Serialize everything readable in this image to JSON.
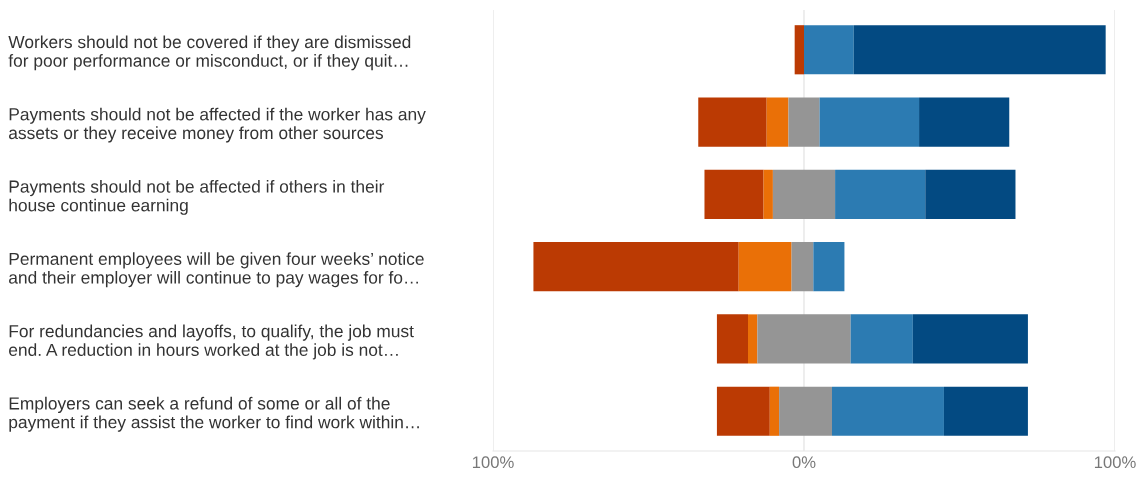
{
  "chart_data": {
    "type": "bar",
    "orientation": "horizontal",
    "categories": [
      "Workers should not be covered if they are dismissed\nfor poor performance or misconduct, or if they quit…",
      "Payments should not be affected if the worker has any\nassets or they receive money from other sources",
      "Payments should not be affected if others in their\nhouse continue earning",
      "Permanent employees will be given four weeks’ notice\nand their employer will continue to pay wages for fo…",
      "For redundancies and layoffs, to qualify, the job must\nend. A reduction in hours worked at the job is not…",
      "Employers can seek a refund of some or all of the\npayment if they assist the worker to find work within…"
    ],
    "series": [
      {
        "color": "#bb3a03",
        "base": [
          -3,
          -34,
          -32,
          -87,
          -28,
          -28
        ],
        "values": [
          3,
          22,
          19,
          66,
          10,
          17
        ]
      },
      {
        "color": "#ea7007",
        "base": [
          null,
          -12,
          -13,
          -21,
          -18,
          -11
        ],
        "values": [
          null,
          7,
          3,
          17,
          3,
          3
        ]
      },
      {
        "color": "#959595",
        "base": [
          null,
          -5,
          -10,
          -4,
          -15,
          -8
        ],
        "values": [
          null,
          10,
          20,
          7,
          30,
          17
        ]
      },
      {
        "color": "#2c7bb2",
        "base": [
          0,
          5,
          10,
          3,
          15,
          9
        ],
        "values": [
          16,
          32,
          29,
          10,
          20,
          36
        ]
      },
      {
        "color": "#034a82",
        "base": [
          16,
          37,
          39,
          null,
          35,
          45
        ],
        "values": [
          81,
          29,
          29,
          null,
          37,
          27
        ]
      }
    ],
    "xlim": [
      -100,
      100
    ],
    "xticks": [
      {
        "value": -100,
        "label": "100%"
      },
      {
        "value": 0,
        "label": "0%"
      },
      {
        "value": 100,
        "label": "100%"
      }
    ],
    "grid": "x"
  }
}
